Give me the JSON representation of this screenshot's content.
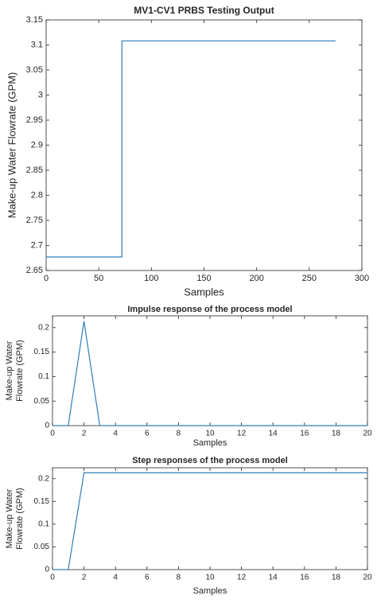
{
  "chart_data": [
    {
      "type": "line",
      "title": "MV1-CV1 PRBS Testing Output",
      "x_label": "Samples",
      "y_label": [
        "Make-up Water Flowrate (GPM)"
      ],
      "x": [
        0,
        72,
        72,
        275
      ],
      "series": [
        {
          "color": "#2f7fb8",
          "values": [
            2.677,
            2.677,
            3.108,
            3.108
          ]
        }
      ],
      "xlim": [
        0,
        300
      ],
      "xticks": [
        0,
        50,
        100,
        150,
        200,
        250,
        300
      ],
      "ylim": [
        2.65,
        3.15
      ],
      "yticks": [
        2.65,
        2.7,
        2.75,
        2.8,
        2.85,
        2.9,
        2.95,
        3,
        3.05,
        3.1,
        3.15
      ]
    },
    {
      "type": "line",
      "title": "Impulse response of the process model",
      "x_label": "Samples",
      "y_label": [
        "Make-up Water",
        "Flowrate (GPM)"
      ],
      "x": [
        0,
        1,
        2,
        3,
        4,
        5,
        6,
        7,
        8,
        9,
        10,
        11,
        12,
        13,
        14,
        15,
        16,
        17,
        18,
        19,
        20
      ],
      "series": [
        {
          "color": "#2f7fb8",
          "values": [
            0,
            0,
            0.213,
            0,
            0,
            0,
            0,
            0,
            0,
            0,
            0,
            0,
            0,
            0,
            0,
            0,
            0,
            0,
            0,
            0,
            0
          ]
        }
      ],
      "xlim": [
        0,
        20
      ],
      "xticks": [
        0,
        2,
        4,
        6,
        8,
        10,
        12,
        14,
        16,
        18,
        20
      ],
      "ylim": [
        0,
        0.224
      ],
      "yticks": [
        0,
        0.05,
        0.1,
        0.15,
        0.2
      ]
    },
    {
      "type": "line",
      "title": "Step responses of the process model",
      "x_label": "Samples",
      "y_label": [
        "Make-up Water",
        "Flowrate (GPM)"
      ],
      "x": [
        0,
        1,
        2,
        3,
        4,
        5,
        6,
        7,
        8,
        9,
        10,
        11,
        12,
        13,
        14,
        15,
        16,
        17,
        18,
        19,
        20
      ],
      "series": [
        {
          "color": "#2f7fb8",
          "values": [
            0,
            0,
            0.213,
            0.213,
            0.213,
            0.213,
            0.213,
            0.213,
            0.213,
            0.213,
            0.213,
            0.213,
            0.213,
            0.213,
            0.213,
            0.213,
            0.213,
            0.213,
            0.213,
            0.213,
            0.213
          ]
        }
      ],
      "xlim": [
        0,
        20
      ],
      "xticks": [
        0,
        2,
        4,
        6,
        8,
        10,
        12,
        14,
        16,
        18,
        20
      ],
      "ylim": [
        0,
        0.224
      ],
      "yticks": [
        0,
        0.05,
        0.1,
        0.15,
        0.2
      ]
    }
  ]
}
